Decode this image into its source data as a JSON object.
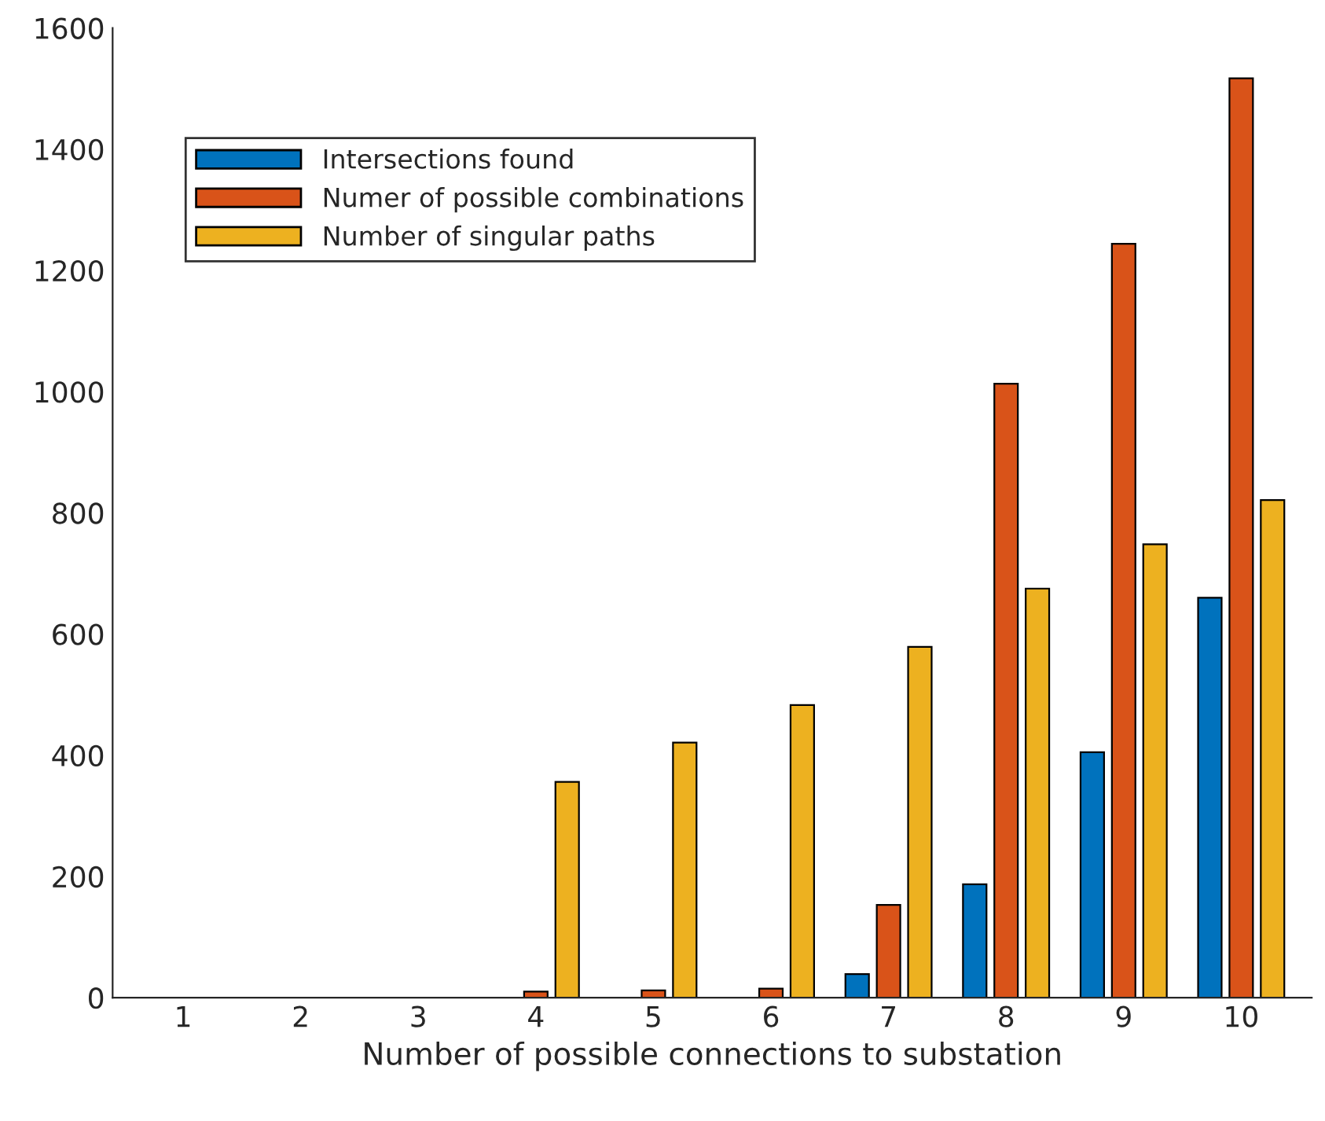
{
  "chart_data": {
    "type": "bar",
    "xlabel": "Number of possible connections to substation",
    "categories": [
      "1",
      "2",
      "3",
      "4",
      "5",
      "6",
      "7",
      "8",
      "9",
      "10"
    ],
    "series": [
      {
        "name": "Intersections found",
        "color": "#0072bd",
        "values": [
          0,
          0,
          0,
          0,
          0,
          0,
          39,
          187,
          405,
          660
        ]
      },
      {
        "name": "Numer of possible combinations",
        "color": "#d95319",
        "values": [
          0,
          0,
          0,
          10,
          12,
          15,
          153,
          1013,
          1244,
          1517
        ]
      },
      {
        "name": "Number of singular paths",
        "color": "#edb120",
        "values": [
          0,
          0,
          0,
          356,
          421,
          483,
          579,
          675,
          748,
          821
        ]
      }
    ],
    "ylim": [
      0,
      1600
    ],
    "yticks": [
      0,
      200,
      400,
      600,
      800,
      1000,
      1200,
      1400,
      1600
    ],
    "grid": false,
    "legend": "top left"
  }
}
